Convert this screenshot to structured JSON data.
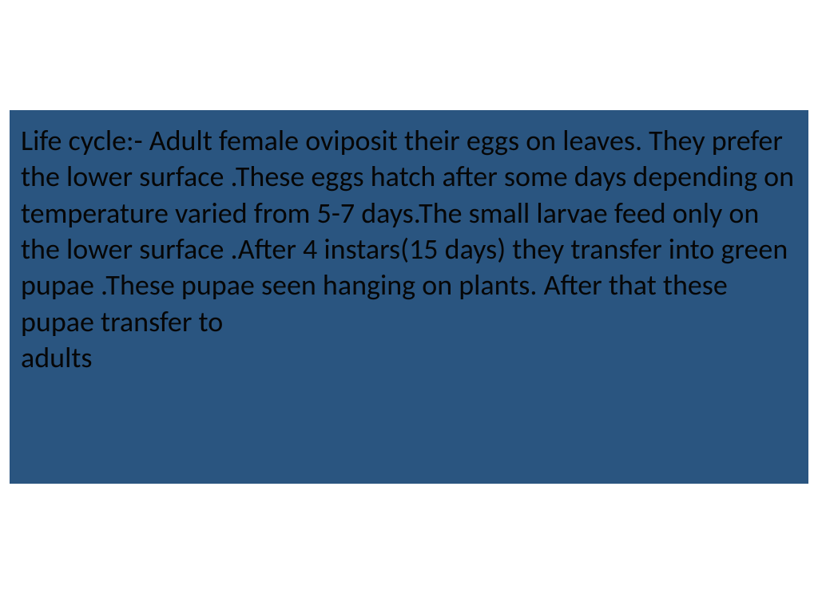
{
  "slide": {
    "content_text": "Life cycle:-   Adult female oviposit their eggs on leaves. They prefer the lower surface .These eggs hatch after some days depending on temperature varied from 5-7 days.The small larvae feed only on the lower surface .After 4 instars(15 days) they transfer into  green pupae .These pupae  seen hanging on plants. After that these pupae transfer to\nadults",
    "background_color": "#2a5580",
    "text_color": "#060606",
    "page_background": "#ffffff",
    "font_size": 36,
    "font_family": "Calibri"
  }
}
